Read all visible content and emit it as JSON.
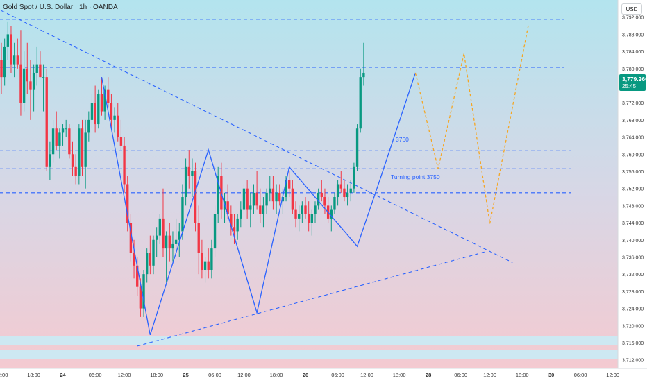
{
  "header": {
    "title": "Gold Spot / U.S. Dollar · 1h · OANDA",
    "currency": "USD"
  },
  "colors": {
    "bull": "#089981",
    "bear": "#f23645",
    "trend": "#2962ff",
    "projection": "#f5a623",
    "price_tag": "#089981"
  },
  "price_tag": {
    "price": "3,779.260",
    "countdown": "25:45"
  },
  "annotations": {
    "level_3760": "3760",
    "turning_point": "Turning point 3750"
  },
  "chart_data": {
    "type": "candlestick",
    "title": "Gold Spot / U.S. Dollar · 1h · OANDA",
    "ylim": [
      3710,
      3796
    ],
    "xlim": [
      0,
      191
    ],
    "y_ticks": [
      3712,
      3716,
      3720,
      3724,
      3728,
      3732,
      3736,
      3740,
      3744,
      3748,
      3752,
      3756,
      3760,
      3764,
      3768,
      3772,
      3776,
      3780,
      3784,
      3788,
      3792
    ],
    "y_tick_labels": [
      "3,712.000",
      "3,716.000",
      "3,720.000",
      "3,724.000",
      "3,728.000",
      "3,732.000",
      "3,736.000",
      "3,740.000",
      "3,744.000",
      "3,748.000",
      "3,752.000",
      "3,756.000",
      "3,760.000",
      "3,764.000",
      "3,768.000",
      "3,772.000",
      "3,776.000",
      "3,780.000",
      "3,784.000",
      "3,788.000",
      "3,792.000"
    ],
    "x_ticks": [
      {
        "bar": 0,
        "label": "12:00"
      },
      {
        "bar": 10,
        "label": "18:00"
      },
      {
        "bar": 19,
        "label": "24"
      },
      {
        "bar": 29,
        "label": "06:00"
      },
      {
        "bar": 38,
        "label": "12:00"
      },
      {
        "bar": 48,
        "label": "18:00"
      },
      {
        "bar": 57,
        "label": "25"
      },
      {
        "bar": 66,
        "label": "06:00"
      },
      {
        "bar": 75,
        "label": "12:00"
      },
      {
        "bar": 85,
        "label": "18:00"
      },
      {
        "bar": 94,
        "label": "26"
      },
      {
        "bar": 104,
        "label": "06:00"
      },
      {
        "bar": 113,
        "label": "12:00"
      },
      {
        "bar": 123,
        "label": "18:00"
      },
      {
        "bar": 132,
        "label": "28"
      },
      {
        "bar": 142,
        "label": "06:00"
      },
      {
        "bar": 151,
        "label": "12:00"
      },
      {
        "bar": 161,
        "label": "18:00"
      },
      {
        "bar": 170,
        "label": "30"
      },
      {
        "bar": 179,
        "label": "06:00"
      },
      {
        "bar": 189,
        "label": "12:00"
      }
    ],
    "candles": [
      {
        "o": 3782,
        "h": 3786,
        "l": 3774,
        "c": 3778
      },
      {
        "o": 3778,
        "h": 3787,
        "l": 3776,
        "c": 3785
      },
      {
        "o": 3785,
        "h": 3791,
        "l": 3782,
        "c": 3788
      },
      {
        "o": 3788,
        "h": 3790,
        "l": 3779,
        "c": 3781
      },
      {
        "o": 3781,
        "h": 3786,
        "l": 3778,
        "c": 3783
      },
      {
        "o": 3783,
        "h": 3787,
        "l": 3780,
        "c": 3781
      },
      {
        "o": 3781,
        "h": 3789,
        "l": 3769,
        "c": 3772
      },
      {
        "o": 3772,
        "h": 3784,
        "l": 3770,
        "c": 3780
      },
      {
        "o": 3780,
        "h": 3786,
        "l": 3774,
        "c": 3777
      },
      {
        "o": 3777,
        "h": 3782,
        "l": 3768,
        "c": 3775
      },
      {
        "o": 3775,
        "h": 3781,
        "l": 3770,
        "c": 3779
      },
      {
        "o": 3779,
        "h": 3785,
        "l": 3776,
        "c": 3781
      },
      {
        "o": 3781,
        "h": 3784,
        "l": 3778,
        "c": 3778
      },
      {
        "o": 3778,
        "h": 3781,
        "l": 3770,
        "c": 3778
      },
      {
        "o": 3778,
        "h": 3780,
        "l": 3756,
        "c": 3757
      },
      {
        "o": 3757,
        "h": 3763,
        "l": 3754,
        "c": 3760
      },
      {
        "o": 3760,
        "h": 3768,
        "l": 3758,
        "c": 3766
      },
      {
        "o": 3766,
        "h": 3770,
        "l": 3761,
        "c": 3762
      },
      {
        "o": 3762,
        "h": 3766,
        "l": 3759,
        "c": 3765
      },
      {
        "o": 3765,
        "h": 3767,
        "l": 3762,
        "c": 3766
      },
      {
        "o": 3766,
        "h": 3768,
        "l": 3764,
        "c": 3766
      },
      {
        "o": 3766,
        "h": 3767,
        "l": 3759,
        "c": 3760
      },
      {
        "o": 3760,
        "h": 3763,
        "l": 3755,
        "c": 3757
      },
      {
        "o": 3757,
        "h": 3760,
        "l": 3753,
        "c": 3755
      },
      {
        "o": 3755,
        "h": 3767,
        "l": 3753,
        "c": 3766
      },
      {
        "o": 3766,
        "h": 3768,
        "l": 3755,
        "c": 3757
      },
      {
        "o": 3757,
        "h": 3768,
        "l": 3752,
        "c": 3765
      },
      {
        "o": 3765,
        "h": 3770,
        "l": 3763,
        "c": 3768
      },
      {
        "o": 3768,
        "h": 3774,
        "l": 3766,
        "c": 3772
      },
      {
        "o": 3772,
        "h": 3776,
        "l": 3765,
        "c": 3767
      },
      {
        "o": 3767,
        "h": 3775,
        "l": 3766,
        "c": 3774
      },
      {
        "o": 3774,
        "h": 3778,
        "l": 3769,
        "c": 3770
      },
      {
        "o": 3770,
        "h": 3776,
        "l": 3768,
        "c": 3775
      },
      {
        "o": 3775,
        "h": 3778,
        "l": 3771,
        "c": 3772
      },
      {
        "o": 3772,
        "h": 3774,
        "l": 3766,
        "c": 3768
      },
      {
        "o": 3768,
        "h": 3771,
        "l": 3765,
        "c": 3769
      },
      {
        "o": 3769,
        "h": 3772,
        "l": 3763,
        "c": 3764
      },
      {
        "o": 3764,
        "h": 3768,
        "l": 3761,
        "c": 3762
      },
      {
        "o": 3762,
        "h": 3764,
        "l": 3751,
        "c": 3753
      },
      {
        "o": 3753,
        "h": 3755,
        "l": 3742,
        "c": 3744
      },
      {
        "o": 3744,
        "h": 3746,
        "l": 3735,
        "c": 3737
      },
      {
        "o": 3737,
        "h": 3740,
        "l": 3731,
        "c": 3734
      },
      {
        "o": 3734,
        "h": 3736,
        "l": 3727,
        "c": 3729
      },
      {
        "o": 3729,
        "h": 3731,
        "l": 3722,
        "c": 3724
      },
      {
        "o": 3724,
        "h": 3733,
        "l": 3722,
        "c": 3732
      },
      {
        "o": 3732,
        "h": 3738,
        "l": 3730,
        "c": 3737
      },
      {
        "o": 3737,
        "h": 3741,
        "l": 3732,
        "c": 3734
      },
      {
        "o": 3734,
        "h": 3741,
        "l": 3732,
        "c": 3740
      },
      {
        "o": 3740,
        "h": 3743,
        "l": 3736,
        "c": 3741
      },
      {
        "o": 3741,
        "h": 3746,
        "l": 3739,
        "c": 3745
      },
      {
        "o": 3745,
        "h": 3752,
        "l": 3736,
        "c": 3738
      },
      {
        "o": 3738,
        "h": 3742,
        "l": 3730,
        "c": 3741
      },
      {
        "o": 3741,
        "h": 3744,
        "l": 3735,
        "c": 3738
      },
      {
        "o": 3738,
        "h": 3742,
        "l": 3735,
        "c": 3739
      },
      {
        "o": 3739,
        "h": 3745,
        "l": 3737,
        "c": 3740
      },
      {
        "o": 3740,
        "h": 3744,
        "l": 3736,
        "c": 3742
      },
      {
        "o": 3742,
        "h": 3753,
        "l": 3740,
        "c": 3750
      },
      {
        "o": 3750,
        "h": 3759,
        "l": 3748,
        "c": 3757
      },
      {
        "o": 3757,
        "h": 3761,
        "l": 3752,
        "c": 3755
      },
      {
        "o": 3755,
        "h": 3759,
        "l": 3750,
        "c": 3756
      },
      {
        "o": 3756,
        "h": 3758,
        "l": 3742,
        "c": 3744
      },
      {
        "o": 3744,
        "h": 3748,
        "l": 3732,
        "c": 3737
      },
      {
        "o": 3737,
        "h": 3740,
        "l": 3731,
        "c": 3733
      },
      {
        "o": 3733,
        "h": 3736,
        "l": 3730,
        "c": 3735
      },
      {
        "o": 3735,
        "h": 3738,
        "l": 3731,
        "c": 3733
      },
      {
        "o": 3733,
        "h": 3740,
        "l": 3731,
        "c": 3738
      },
      {
        "o": 3738,
        "h": 3748,
        "l": 3736,
        "c": 3746
      },
      {
        "o": 3746,
        "h": 3757,
        "l": 3744,
        "c": 3755
      },
      {
        "o": 3755,
        "h": 3758,
        "l": 3745,
        "c": 3747
      },
      {
        "o": 3747,
        "h": 3751,
        "l": 3744,
        "c": 3749
      },
      {
        "o": 3749,
        "h": 3753,
        "l": 3745,
        "c": 3746
      },
      {
        "o": 3746,
        "h": 3748,
        "l": 3741,
        "c": 3743
      },
      {
        "o": 3743,
        "h": 3746,
        "l": 3739,
        "c": 3742
      },
      {
        "o": 3742,
        "h": 3746,
        "l": 3740,
        "c": 3745
      },
      {
        "o": 3745,
        "h": 3749,
        "l": 3743,
        "c": 3747
      },
      {
        "o": 3747,
        "h": 3753,
        "l": 3746,
        "c": 3752
      },
      {
        "o": 3752,
        "h": 3754,
        "l": 3745,
        "c": 3747
      },
      {
        "o": 3747,
        "h": 3751,
        "l": 3743,
        "c": 3748
      },
      {
        "o": 3748,
        "h": 3753,
        "l": 3746,
        "c": 3751
      },
      {
        "o": 3751,
        "h": 3756,
        "l": 3747,
        "c": 3748
      },
      {
        "o": 3748,
        "h": 3752,
        "l": 3744,
        "c": 3746
      },
      {
        "o": 3746,
        "h": 3750,
        "l": 3743,
        "c": 3748
      },
      {
        "o": 3748,
        "h": 3752,
        "l": 3746,
        "c": 3751
      },
      {
        "o": 3751,
        "h": 3755,
        "l": 3749,
        "c": 3752
      },
      {
        "o": 3752,
        "h": 3755,
        "l": 3747,
        "c": 3749
      },
      {
        "o": 3749,
        "h": 3753,
        "l": 3746,
        "c": 3751
      },
      {
        "o": 3751,
        "h": 3753,
        "l": 3748,
        "c": 3749
      },
      {
        "o": 3749,
        "h": 3752,
        "l": 3746,
        "c": 3750
      },
      {
        "o": 3750,
        "h": 3755,
        "l": 3749,
        "c": 3754
      },
      {
        "o": 3754,
        "h": 3756,
        "l": 3750,
        "c": 3752
      },
      {
        "o": 3752,
        "h": 3754,
        "l": 3746,
        "c": 3747
      },
      {
        "o": 3747,
        "h": 3749,
        "l": 3743,
        "c": 3745
      },
      {
        "o": 3745,
        "h": 3748,
        "l": 3742,
        "c": 3746
      },
      {
        "o": 3746,
        "h": 3749,
        "l": 3744,
        "c": 3748
      },
      {
        "o": 3748,
        "h": 3750,
        "l": 3745,
        "c": 3746
      },
      {
        "o": 3746,
        "h": 3749,
        "l": 3742,
        "c": 3744
      },
      {
        "o": 3744,
        "h": 3747,
        "l": 3741,
        "c": 3746
      },
      {
        "o": 3746,
        "h": 3749,
        "l": 3744,
        "c": 3748
      },
      {
        "o": 3748,
        "h": 3752,
        "l": 3747,
        "c": 3751
      },
      {
        "o": 3751,
        "h": 3754,
        "l": 3749,
        "c": 3750
      },
      {
        "o": 3750,
        "h": 3752,
        "l": 3746,
        "c": 3748
      },
      {
        "o": 3748,
        "h": 3750,
        "l": 3744,
        "c": 3745
      },
      {
        "o": 3745,
        "h": 3748,
        "l": 3742,
        "c": 3747
      },
      {
        "o": 3747,
        "h": 3751,
        "l": 3746,
        "c": 3750
      },
      {
        "o": 3750,
        "h": 3754,
        "l": 3748,
        "c": 3753
      },
      {
        "o": 3753,
        "h": 3756,
        "l": 3751,
        "c": 3752
      },
      {
        "o": 3752,
        "h": 3754,
        "l": 3749,
        "c": 3750
      },
      {
        "o": 3750,
        "h": 3753,
        "l": 3748,
        "c": 3751
      },
      {
        "o": 3751,
        "h": 3754,
        "l": 3749,
        "c": 3752
      },
      {
        "o": 3752,
        "h": 3758,
        "l": 3751,
        "c": 3757
      },
      {
        "o": 3757,
        "h": 3767,
        "l": 3756,
        "c": 3766
      },
      {
        "o": 3766,
        "h": 3780,
        "l": 3765,
        "c": 3778
      },
      {
        "o": 3778,
        "h": 3786,
        "l": 3776,
        "c": 3779
      }
    ],
    "resistance_levels": [
      3791.5,
      3780.3,
      3760.8,
      3756.6,
      3751.0
    ],
    "trend_lines": [
      {
        "from": [
          0,
          3793.5
        ],
        "to": [
          158,
          3734.7
        ]
      },
      {
        "from": [
          42,
          3715.2
        ],
        "to": [
          150,
          3737.3
        ]
      }
    ],
    "zigzag": [
      [
        31,
        3778
      ],
      [
        46,
        3717.8
      ],
      [
        64,
        3761
      ],
      [
        79,
        3723
      ],
      [
        89,
        3757
      ],
      [
        110,
        3738.5
      ],
      [
        117,
        3754
      ],
      [
        128,
        3779
      ]
    ],
    "projection": [
      [
        128,
        3779
      ],
      [
        135,
        3756.6
      ],
      [
        143,
        3783.5
      ],
      [
        151,
        3743.8
      ],
      [
        163,
        3790.5
      ]
    ]
  }
}
